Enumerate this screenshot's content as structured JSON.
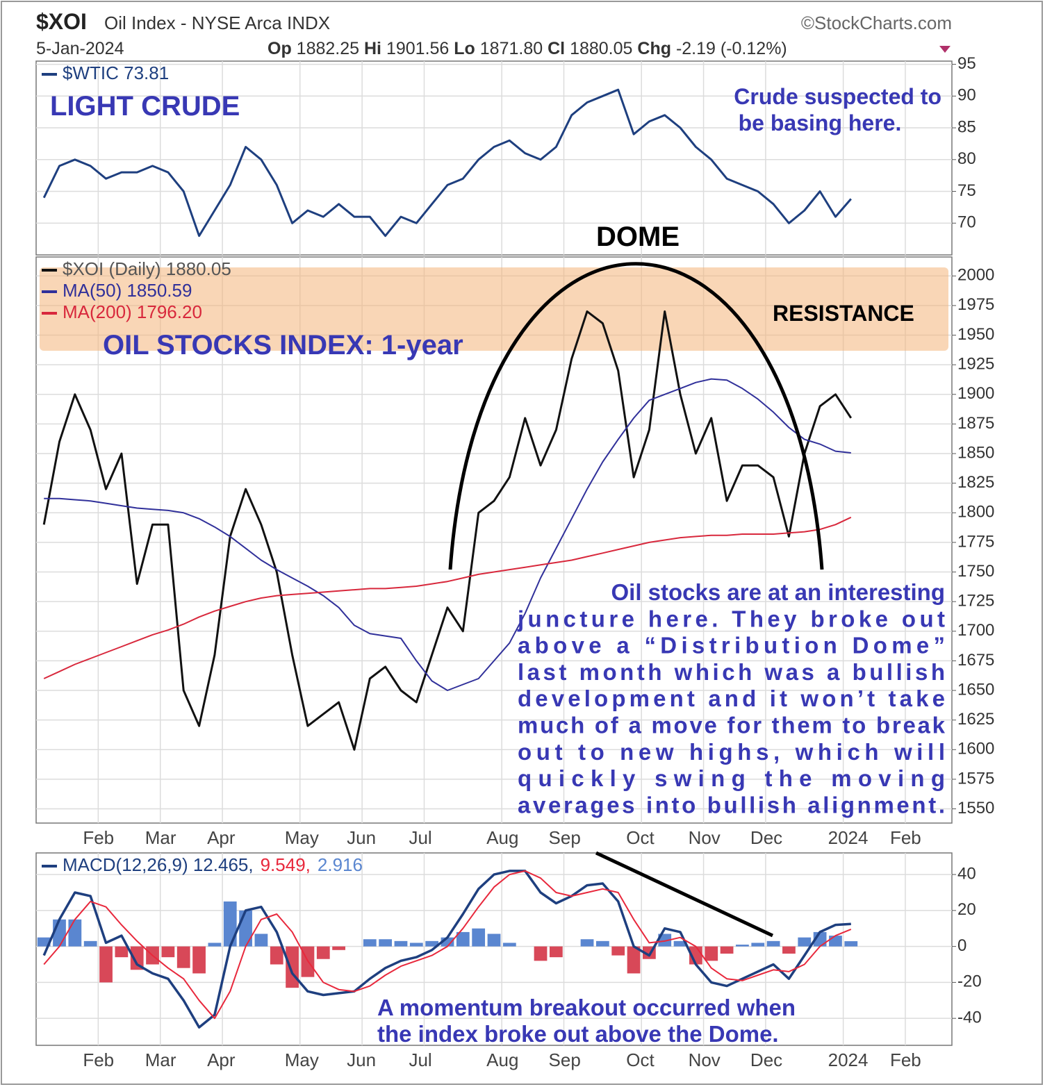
{
  "header": {
    "symbol": "$XOI",
    "name": "Oil Index - NYSE Arca INDX",
    "source": "©StockCharts.com",
    "date": "5-Jan-2024",
    "quote": [
      {
        "label": "Op",
        "value": "1882.25"
      },
      {
        "label": "Hi",
        "value": "1901.56"
      },
      {
        "label": "Lo",
        "value": "1871.80"
      },
      {
        "label": "Cl",
        "value": "1880.05"
      },
      {
        "label": "Chg",
        "value": "-2.19 (-0.12%)"
      }
    ]
  },
  "chart_data": [
    {
      "type": "line",
      "title": "LIGHT CRUDE",
      "annotations": [
        "Crude suspected to",
        "be basing here."
      ],
      "ylim": [
        65,
        95.5
      ],
      "yticks": [
        70,
        75,
        80,
        85,
        90,
        95
      ],
      "grid": true,
      "series": [
        {
          "name": "$WTIC 73.81",
          "color": "#1e3f7f",
          "values": [
            74,
            79,
            80,
            79,
            77,
            78,
            78,
            79,
            78,
            75,
            68,
            72,
            76,
            82,
            80,
            76,
            70,
            72,
            71,
            73,
            71,
            71,
            68,
            71,
            70,
            73,
            76,
            77,
            80,
            82,
            83,
            81,
            80,
            82,
            87,
            89,
            90,
            91,
            84,
            86,
            87,
            85,
            82,
            80,
            77,
            76,
            75,
            73,
            70,
            72,
            75,
            71,
            73.81,
            null,
            null,
            null,
            null,
            null,
            null
          ]
        }
      ]
    },
    {
      "type": "line",
      "title": "OIL STOCKS INDEX: 1-year",
      "annotations": [
        "DOME",
        "RESISTANCE",
        "Oil stocks are at an interesting",
        "juncture here. They broke out",
        "above a “Distribution Dome”",
        "last month which was a bullish",
        "development and it won’t take",
        "much of a move for them to break",
        "out to new highs, which will",
        "quickly swing the moving",
        "averages into bullish alignment."
      ],
      "categories": [
        null,
        null,
        null,
        null,
        "Feb",
        null,
        null,
        null,
        "Mar",
        null,
        null,
        null,
        "Apr",
        null,
        null,
        null,
        null,
        "May",
        null,
        null,
        null,
        "Jun",
        null,
        null,
        null,
        "Jul",
        null,
        null,
        null,
        null,
        "Aug",
        null,
        null,
        null,
        "Sep",
        null,
        null,
        null,
        null,
        "Oct",
        null,
        null,
        null,
        "Nov",
        null,
        null,
        null,
        "Dec",
        null,
        null,
        null,
        null,
        "2024",
        null,
        null,
        null,
        "Feb",
        null,
        null
      ],
      "ylim": [
        1538,
        2016
      ],
      "yticks": [
        1550,
        1575,
        1600,
        1625,
        1650,
        1675,
        1700,
        1725,
        1750,
        1775,
        1800,
        1825,
        1850,
        1875,
        1900,
        1925,
        1950,
        1975,
        2000
      ],
      "grid": true,
      "series": [
        {
          "name": "$XOI (Daily) 1880.05",
          "color": "#111111",
          "values": [
            1790,
            1860,
            1900,
            1870,
            1820,
            1850,
            1740,
            1790,
            1790,
            1650,
            1620,
            1680,
            1780,
            1820,
            1790,
            1750,
            1680,
            1620,
            1630,
            1640,
            1600,
            1660,
            1670,
            1650,
            1640,
            1680,
            1720,
            1700,
            1800,
            1810,
            1830,
            1880,
            1840,
            1870,
            1930,
            1970,
            1960,
            1920,
            1830,
            1870,
            1970,
            1900,
            1850,
            1880,
            1810,
            1840,
            1840,
            1830,
            1780,
            1850,
            1890,
            1900,
            1880.05,
            null,
            null,
            null,
            null,
            null,
            null
          ]
        },
        {
          "name": "MA(50) 1850.59",
          "color": "#30309a",
          "values": [
            1812,
            1812,
            1811,
            1810,
            1808,
            1806,
            1804,
            1803,
            1802,
            1800,
            1795,
            1788,
            1780,
            1770,
            1760,
            1752,
            1745,
            1738,
            1730,
            1720,
            1705,
            1698,
            1696,
            1694,
            1675,
            1658,
            1650,
            1655,
            1660,
            1675,
            1690,
            1715,
            1745,
            1770,
            1795,
            1820,
            1843,
            1862,
            1880,
            1895,
            1900,
            1905,
            1910,
            1913,
            1912,
            1905,
            1896,
            1885,
            1872,
            1862,
            1858,
            1852,
            1850.59,
            null,
            null,
            null,
            null,
            null,
            null
          ]
        },
        {
          "name": "MA(200) 1796.20",
          "color": "#d8283c",
          "values": [
            1660,
            1666,
            1672,
            1677,
            1682,
            1687,
            1692,
            1697,
            1701,
            1706,
            1712,
            1717,
            1721,
            1725,
            1728,
            1730,
            1731,
            1732,
            1733,
            1734,
            1735,
            1736,
            1736,
            1737,
            1738,
            1740,
            1742,
            1745,
            1748,
            1750,
            1752,
            1754,
            1756,
            1758,
            1760,
            1763,
            1766,
            1769,
            1772,
            1775,
            1777,
            1779,
            1780,
            1781,
            1781,
            1782,
            1782,
            1782,
            1783,
            1784,
            1786,
            1790,
            1796.2,
            null,
            null,
            null,
            null,
            null,
            null
          ]
        }
      ]
    },
    {
      "type": "line",
      "annotations": [
        "A momentum breakout occurred when",
        "the index broke out above the Dome."
      ],
      "legend_text": [
        "MACD(12,26,9) 12.465,",
        "9.549,",
        "2.916"
      ],
      "categories": [
        null,
        null,
        null,
        null,
        "Feb",
        null,
        null,
        null,
        "Mar",
        null,
        null,
        null,
        "Apr",
        null,
        null,
        null,
        null,
        "May",
        null,
        null,
        null,
        "Jun",
        null,
        null,
        null,
        "Jul",
        null,
        null,
        null,
        null,
        "Aug",
        null,
        null,
        null,
        "Sep",
        null,
        null,
        null,
        null,
        "Oct",
        null,
        null,
        null,
        "Nov",
        null,
        null,
        null,
        "Dec",
        null,
        null,
        null,
        null,
        "2024",
        null,
        null,
        null,
        "Feb",
        null,
        null
      ],
      "ylim": [
        -55,
        52
      ],
      "yticks": [
        -40,
        -20,
        0,
        20,
        40
      ],
      "grid": true,
      "series": [
        {
          "type": "bar",
          "color": "#5a86d0",
          "negative_color": "#d84858",
          "values": [
            5,
            15,
            15,
            3,
            -20,
            -6,
            -13,
            -10,
            -6,
            -12,
            -15,
            2,
            25,
            20,
            7,
            -10,
            -23,
            -17,
            -7,
            -2,
            0,
            4,
            4,
            3,
            2,
            3,
            5,
            8,
            10,
            7,
            2,
            0,
            -8,
            -6,
            0,
            4,
            3,
            -5,
            -15,
            -7,
            7,
            3,
            -10,
            -8,
            -4,
            1,
            2,
            3,
            -4,
            5,
            8,
            6,
            2.916,
            null,
            null,
            null,
            null,
            null,
            null
          ]
        },
        {
          "color": "#1e3f7f",
          "values": [
            -5,
            15,
            30,
            28,
            2,
            6,
            -10,
            -15,
            -18,
            -30,
            -45,
            -38,
            0,
            20,
            22,
            8,
            -15,
            -25,
            -27,
            -26,
            -25,
            -18,
            -12,
            -8,
            -6,
            -2,
            5,
            18,
            32,
            40,
            42,
            42,
            30,
            24,
            28,
            34,
            35,
            25,
            0,
            -5,
            10,
            8,
            -10,
            -20,
            -22,
            -18,
            -14,
            -10,
            -18,
            -5,
            8,
            12,
            12.465,
            null,
            null,
            null,
            null,
            null,
            null
          ]
        },
        {
          "color": "#e8283c",
          "values": [
            -10,
            0,
            15,
            25,
            22,
            12,
            3,
            -5,
            -12,
            -18,
            -30,
            -40,
            -25,
            0,
            15,
            18,
            8,
            -8,
            -20,
            -24,
            -25,
            -22,
            -16,
            -11,
            -8,
            -5,
            0,
            10,
            22,
            33,
            40,
            42,
            38,
            30,
            28,
            30,
            32,
            30,
            15,
            2,
            3,
            5,
            0,
            -12,
            -18,
            -19,
            -16,
            -13,
            -14,
            -10,
            0,
            6,
            9.549,
            null,
            null,
            null,
            null,
            null,
            null
          ]
        }
      ]
    }
  ]
}
